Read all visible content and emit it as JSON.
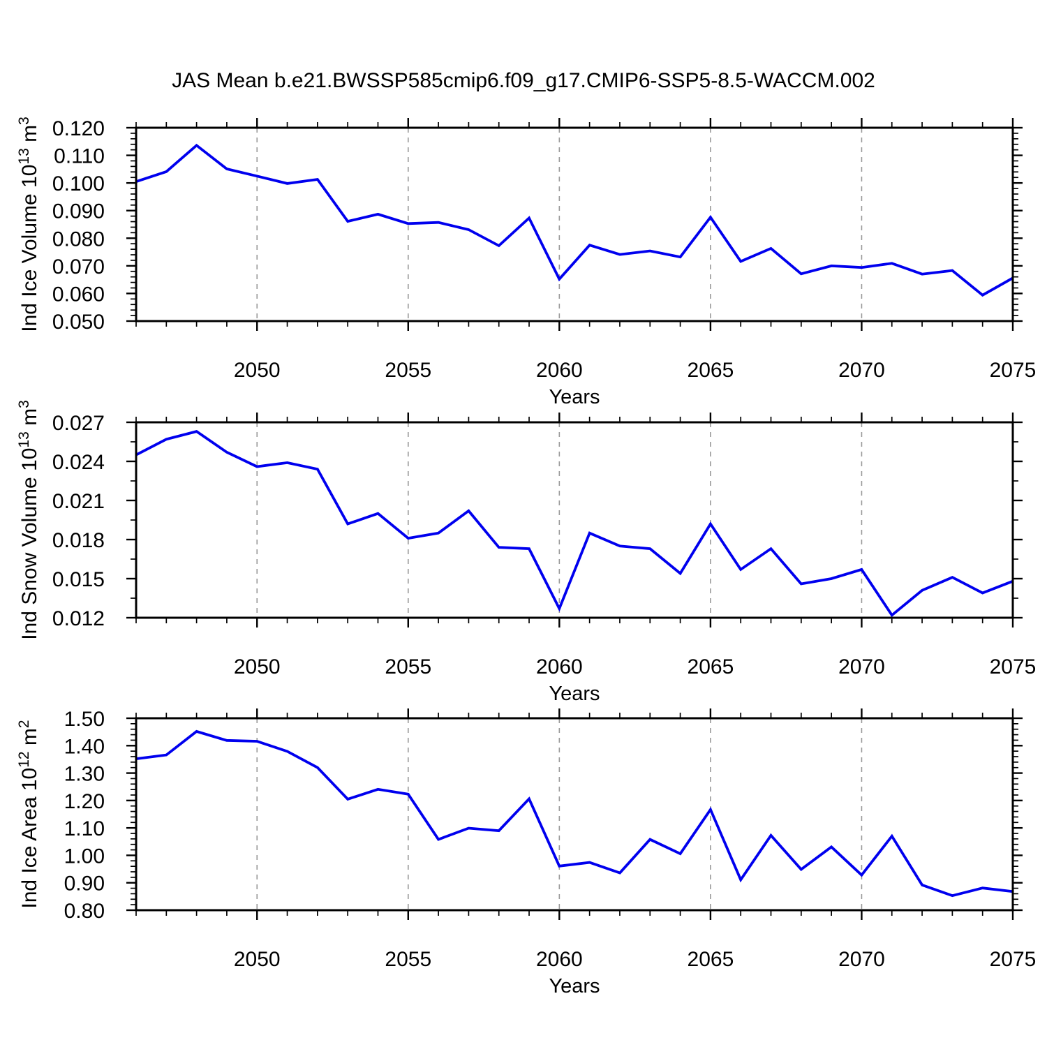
{
  "title": "JAS Mean b.e21.BWSSP585cmip6.f09_g17.CMIP6-SSP5-8.5-WACCM.002",
  "chart_data": {
    "type": "line",
    "title": "JAS Mean b.e21.BWSSP585cmip6.f09_g17.CMIP6-SSP5-8.5-WACCM.002",
    "xlabel": "Years",
    "x": [
      2046,
      2047,
      2048,
      2049,
      2050,
      2051,
      2052,
      2053,
      2054,
      2055,
      2056,
      2057,
      2058,
      2059,
      2060,
      2061,
      2062,
      2063,
      2064,
      2065,
      2066,
      2067,
      2068,
      2069,
      2070,
      2071,
      2072,
      2073,
      2074,
      2075
    ],
    "x_axis": {
      "min": 2046,
      "max": 2075,
      "major_ticks": [
        2050,
        2055,
        2060,
        2065,
        2070,
        2075
      ],
      "minor_step": 1,
      "grid_years": [
        2050,
        2055,
        2060,
        2065,
        2070
      ]
    },
    "line_color": "#0000ee",
    "grid_color": "#999999",
    "frame_color": "#000000",
    "legend": "none",
    "panels": [
      {
        "id": "ind-ice-volume",
        "ylabel_text": "Ind Ice Volume 10^13 m^3",
        "ylabel_parts": [
          [
            "Ind Ice Volume 10",
            0
          ],
          [
            "13",
            1
          ],
          [
            " m",
            0
          ],
          [
            "3",
            1
          ]
        ],
        "y_axis": {
          "min": 0.05,
          "max": 0.12,
          "major_step": 0.01,
          "minor_step": 0.002,
          "decimals": 3
        },
        "values": [
          0.1005,
          0.1041,
          0.1136,
          0.1051,
          0.1025,
          0.0998,
          0.1013,
          0.0861,
          0.0887,
          0.0853,
          0.0857,
          0.0831,
          0.0773,
          0.0873,
          0.0652,
          0.0775,
          0.0741,
          0.0754,
          0.0732,
          0.0876,
          0.0716,
          0.0763,
          0.0671,
          0.07,
          0.0694,
          0.0709,
          0.067,
          0.0683,
          0.0594,
          0.0656
        ]
      },
      {
        "id": "ind-snow-volume",
        "ylabel_text": "Ind Snow Volume 10^13 m^3",
        "ylabel_parts": [
          [
            "Ind Snow Volume 10",
            0
          ],
          [
            "13",
            1
          ],
          [
            " m",
            0
          ],
          [
            "3",
            1
          ]
        ],
        "y_axis": {
          "min": 0.012,
          "max": 0.027,
          "major_step": 0.003,
          "minor_step": 0.0015,
          "decimals": 3
        },
        "values": [
          0.0245,
          0.0257,
          0.0263,
          0.0247,
          0.0236,
          0.0239,
          0.0234,
          0.0192,
          0.02,
          0.0181,
          0.0185,
          0.0202,
          0.0174,
          0.0173,
          0.0127,
          0.0185,
          0.0175,
          0.0173,
          0.0154,
          0.0192,
          0.0157,
          0.0173,
          0.0146,
          0.015,
          0.0157,
          0.0122,
          0.0141,
          0.0151,
          0.0139,
          0.0148
        ]
      },
      {
        "id": "ind-ice-area",
        "ylabel_text": "Ind Ice Area 10^12 m^2",
        "ylabel_parts": [
          [
            "Ind Ice Area 10",
            0
          ],
          [
            "12",
            1
          ],
          [
            " m",
            0
          ],
          [
            "2",
            1
          ]
        ],
        "y_axis": {
          "min": 0.8,
          "max": 1.5,
          "major_step": 0.1,
          "minor_step": 0.02,
          "decimals": 2
        },
        "values": [
          1.352,
          1.366,
          1.452,
          1.419,
          1.416,
          1.379,
          1.32,
          1.205,
          1.241,
          1.223,
          1.058,
          1.099,
          1.09,
          1.206,
          0.961,
          0.974,
          0.936,
          1.058,
          1.006,
          1.167,
          0.911,
          1.073,
          0.949,
          1.031,
          0.928,
          1.07,
          0.892,
          0.853,
          0.881,
          0.868
        ]
      }
    ]
  }
}
